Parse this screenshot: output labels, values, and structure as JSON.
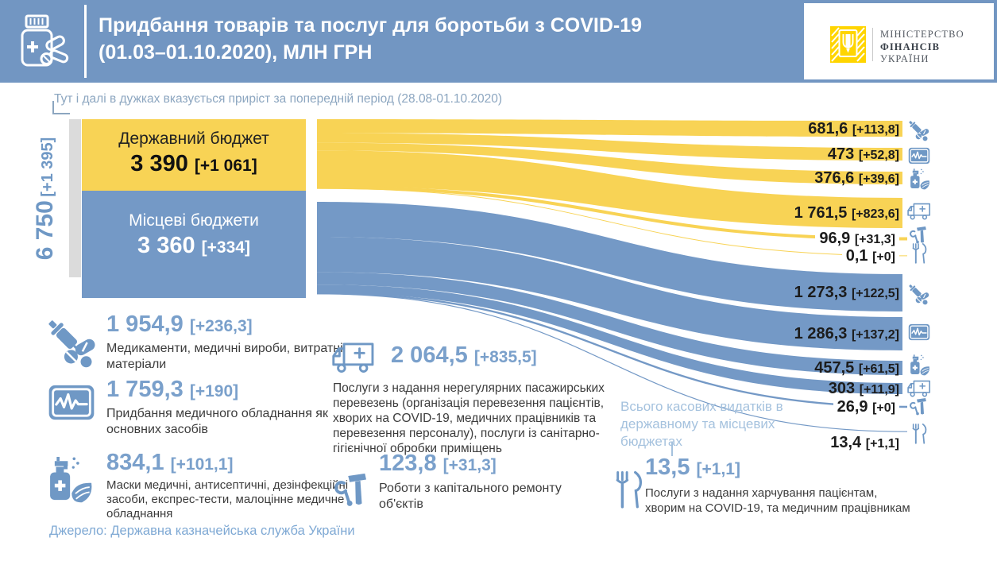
{
  "header": {
    "title_line1": "Придбання товарів та послуг для боротьби з COVID-19",
    "title_line2": "(01.03–01.10.2020), МЛН ГРН",
    "logo": {
      "line1": "МІНІСТЕРСТВО",
      "line2": "ФІНАНСІВ",
      "line3": "УКРАЇНИ"
    }
  },
  "note": {
    "text": "Тут і далі в дужках вказується приріст за попередній період (28.08-01.10.2020)"
  },
  "total": {
    "value": "6 750",
    "delta": "[+1 395]"
  },
  "sources": [
    {
      "name": "Державний бюджет",
      "value": "3 390",
      "delta": "[+1 061]"
    },
    {
      "name": "Місцеві бюджети",
      "value": "3 360",
      "delta": "[+334]"
    }
  ],
  "categories": [
    {
      "value": "1 954,9",
      "delta": "[+236,3]",
      "icon": "syringe-pills-icon",
      "desc": "Медикаменти, медичні вироби, витратні матеріали"
    },
    {
      "value": "1 759,3",
      "delta": "[+190]",
      "icon": "monitor-icon",
      "desc": "Придбання медичного обладнання як основних засобів"
    },
    {
      "value": "834,1",
      "delta": "[+101,1]",
      "icon": "sanitizer-mask-icon",
      "desc": "Маски медичні, антисептичні, дезінфекційні засоби, експрес-тести, малоцінне медичне обладнання"
    },
    {
      "value": "2 064,5",
      "delta": "[+835,5]",
      "icon": "ambulance-icon",
      "desc": "Послуги  з надання нерегулярних  пасажирських перевезень (організація перевезення пацієнтів, хворих на COVID-19, медичних  працівників та перевезення персоналу),  послуги  із санітарно-гігієнічної обробки приміщень"
    },
    {
      "value": "123,8",
      "delta": "[+31,3]",
      "icon": "tools-icon",
      "desc": "Роботи з капітального ремонту об'єктів"
    },
    {
      "value": "13,5",
      "delta": "[+1,1]",
      "icon": "cutlery-icon",
      "desc": "Послуги з надання харчування  пацієнтам, хворим на COVID-19, та медичним  працівникам"
    }
  ],
  "callout": {
    "text": "Всього касових видатків в державному та місцевих бюджетах"
  },
  "footer": {
    "source": "Джерело: Державна казначейська служба України"
  },
  "colors": {
    "header_bg": "#7296C2",
    "yellow": "#F8D355",
    "blue": "#7499C6",
    "accent_number": "#7AA0CB",
    "light_blue": "#A5C2DE",
    "note_text": "#8CA6C0",
    "gray_bar": "#DBDBDB",
    "dark_text": "#3C3C3C",
    "label_text": "#1C1C1C",
    "logo_yellow": "#FFD500"
  },
  "chart_data": {
    "type": "sankey",
    "title": "Придбання товарів та послуг для боротьби з COVID-19 (01.03–01.10.2020), млн грн",
    "period": "01.03–01.10.2020",
    "growth_note": "у дужках — приріст за попередній період (28.08-01.10.2020)",
    "total": {
      "value": 6750,
      "delta": 1395
    },
    "sources": [
      {
        "name": "Державний бюджет",
        "value": 3390,
        "delta": 1061
      },
      {
        "name": "Місцеві бюджети",
        "value": 3360,
        "delta": 334
      }
    ],
    "categories": [
      {
        "name": "Медикаменти, медичні вироби, витратні матеріали",
        "total": 1954.9,
        "delta": 236.3
      },
      {
        "name": "Придбання медичного обладнання як основних засобів",
        "total": 1759.3,
        "delta": 190
      },
      {
        "name": "Маски медичні, антисептичні, дезінфекційні засоби, експрес-тести, малоцінне медичне обладнання",
        "total": 834.1,
        "delta": 101.1
      },
      {
        "name": "Послуги з надання нерегулярних пасажирських перевезень, послуги із санітарно-гігієнічної обробки приміщень",
        "total": 2064.5,
        "delta": 835.5
      },
      {
        "name": "Роботи з капітального ремонту об'єктів",
        "total": 123.8,
        "delta": 31.3
      },
      {
        "name": "Послуги з надання харчування пацієнтам, хворим на COVID-19, та медичним працівникам",
        "total": 13.5,
        "delta": 1.1
      }
    ],
    "links": [
      {
        "source": "Державний бюджет",
        "category_index": 0,
        "value": 681.6,
        "delta": 113.8,
        "label": "681,6",
        "delta_label": "[+113,8]"
      },
      {
        "source": "Державний бюджет",
        "category_index": 1,
        "value": 473,
        "delta": 52.8,
        "label": "473",
        "delta_label": "[+52,8]"
      },
      {
        "source": "Державний бюджет",
        "category_index": 2,
        "value": 376.6,
        "delta": 39.6,
        "label": "376,6",
        "delta_label": "[+39,6]"
      },
      {
        "source": "Державний бюджет",
        "category_index": 3,
        "value": 1761.5,
        "delta": 823.6,
        "label": "1 761,5",
        "delta_label": "[+823,6]"
      },
      {
        "source": "Державний бюджет",
        "category_index": 4,
        "value": 96.9,
        "delta": 31.3,
        "label": "96,9",
        "delta_label": "[+31,3]"
      },
      {
        "source": "Державний бюджет",
        "category_index": 5,
        "value": 0.1,
        "delta": 0,
        "label": "0,1",
        "delta_label": "[+0]"
      },
      {
        "source": "Місцеві бюджети",
        "category_index": 0,
        "value": 1273.3,
        "delta": 122.5,
        "label": "1 273,3",
        "delta_label": "[+122,5]"
      },
      {
        "source": "Місцеві бюджети",
        "category_index": 1,
        "value": 1286.3,
        "delta": 137.2,
        "label": "1 286,3",
        "delta_label": "[+137,2]"
      },
      {
        "source": "Місцеві бюджети",
        "category_index": 2,
        "value": 457.5,
        "delta": 61.5,
        "label": "457,5",
        "delta_label": "[+61,5]"
      },
      {
        "source": "Місцеві бюджети",
        "category_index": 3,
        "value": 303,
        "delta": 11.9,
        "label": "303",
        "delta_label": "[+11,9]"
      },
      {
        "source": "Місцеві бюджети",
        "category_index": 4,
        "value": 26.9,
        "delta": 0,
        "label": "26,9",
        "delta_label": "[+0]"
      },
      {
        "source": "Місцеві бюджети",
        "category_index": 5,
        "value": 13.4,
        "delta": 1.1,
        "label": "13,4",
        "delta_label": "[+1,1]"
      }
    ]
  }
}
